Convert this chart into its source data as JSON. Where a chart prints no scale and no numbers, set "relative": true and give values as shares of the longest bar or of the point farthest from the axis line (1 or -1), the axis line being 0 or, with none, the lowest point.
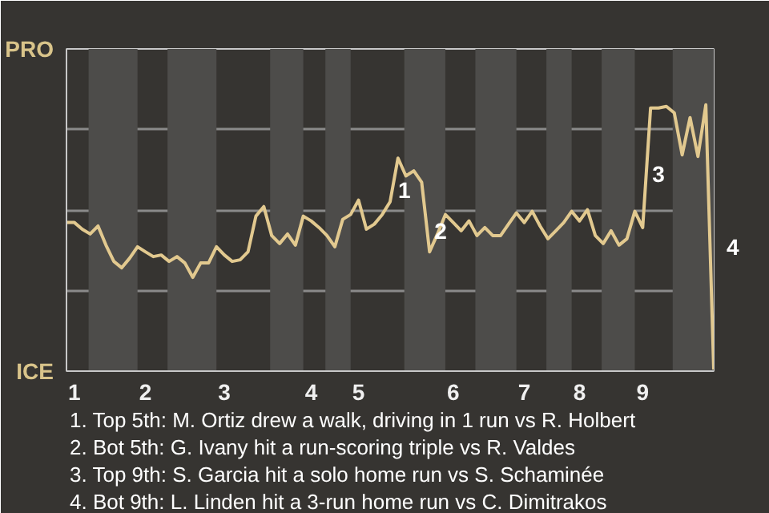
{
  "chart_data": {
    "type": "line",
    "relative": true,
    "categories": [
      null,
      "1",
      null,
      null,
      null,
      null,
      null,
      null,
      null,
      null,
      "2",
      null,
      null,
      null,
      null,
      null,
      null,
      null,
      null,
      null,
      "3",
      null,
      null,
      null,
      null,
      null,
      null,
      null,
      null,
      null,
      null,
      "4",
      null,
      null,
      null,
      null,
      null,
      "5",
      null,
      null,
      null,
      null,
      null,
      null,
      null,
      null,
      null,
      null,
      null,
      "6",
      null,
      null,
      null,
      null,
      null,
      null,
      null,
      null,
      "7",
      null,
      null,
      null,
      null,
      null,
      null,
      "8",
      null,
      null,
      null,
      null,
      null,
      null,
      null,
      "9",
      null,
      null,
      null,
      null,
      null,
      null,
      null,
      null,
      null
    ],
    "series": [
      {
        "color": "#e2c98f",
        "values": [
          0.558,
          0.558,
          0.533,
          0.515,
          0.545,
          0.473,
          0.412,
          0.388,
          0.424,
          0.467,
          0.448,
          0.43,
          0.436,
          0.412,
          0.43,
          0.406,
          0.352,
          0.406,
          0.406,
          0.467,
          0.436,
          0.412,
          0.418,
          0.448,
          0.582,
          0.618,
          0.509,
          0.479,
          0.515,
          0.473,
          0.582,
          0.564,
          0.539,
          0.509,
          0.467,
          0.57,
          0.588,
          0.642,
          0.533,
          0.552,
          0.588,
          0.636,
          0.8,
          0.733,
          0.752,
          0.709,
          0.448,
          0.515,
          0.588,
          0.558,
          0.527,
          0.564,
          0.509,
          0.539,
          0.509,
          0.509,
          0.552,
          0.594,
          0.558,
          0.6,
          0.545,
          0.497,
          0.527,
          0.558,
          0.6,
          0.564,
          0.606,
          0.509,
          0.479,
          0.527,
          0.473,
          0.497,
          0.6,
          0.539,
          0.988,
          0.988,
          0.994,
          0.97,
          0.812,
          0.952,
          0.806,
          1,
          0.006
        ]
      }
    ],
    "grid": "y",
    "marker": "none",
    "line_style": "solid",
    "annotations": [
      "PRO",
      "ICE",
      "1",
      "2",
      "3",
      "4",
      "1. Top 5th: M. Ortiz drew a walk, driving in 1 run vs R. Holbert",
      "2. Bot 5th: G. Ivany hit a run-scoring triple vs R. Valdes",
      "3. Top 9th: S. Garcia hit a solo home run vs S. Schaminée",
      "4. Bot 9th: L. Linden hit a 3-run home run vs C. Dimitrakos"
    ]
  }
}
